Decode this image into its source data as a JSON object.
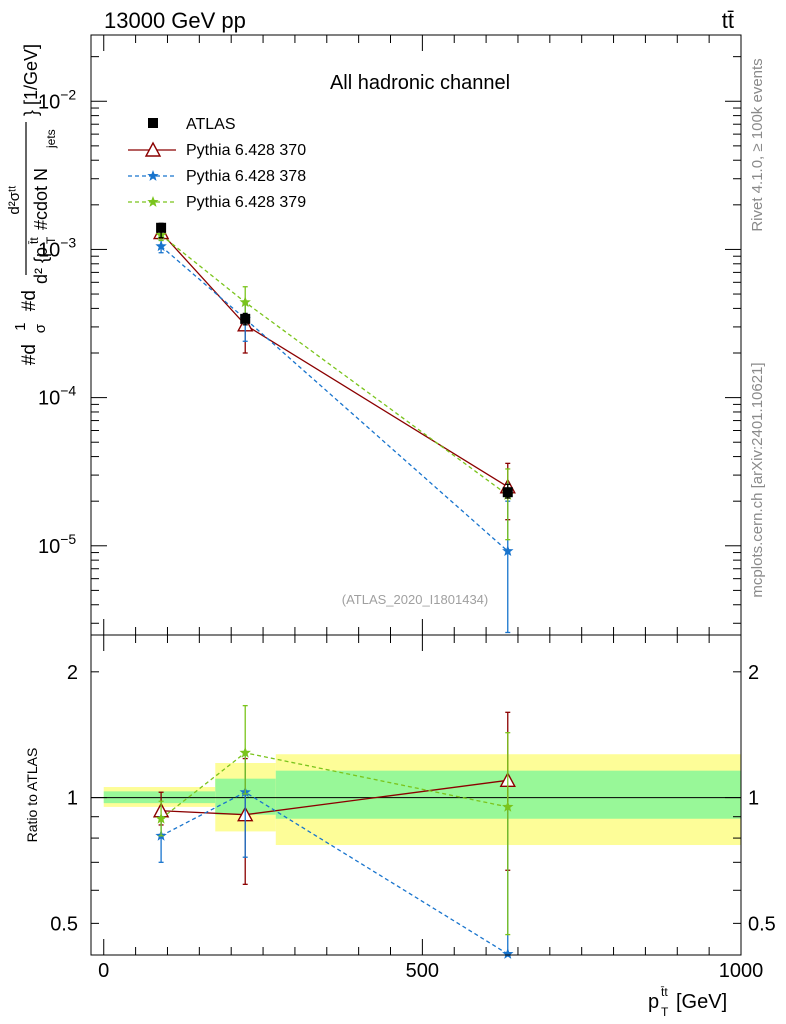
{
  "header": {
    "energy_label": "13000 GeV pp",
    "process_label": "tt̄"
  },
  "side_labels": {
    "rivet": "Rivet 4.1.0, ≥ 100k events",
    "mcplots": "mcplots.cern.ch [arXiv:2401.10621]"
  },
  "chart_data": [
    {
      "type": "line",
      "scale": "log",
      "title": "All hadronic channel",
      "analysis_id": "(ATLAS_2020_I1801434)",
      "ylabel": "#d̄σ #d d²σ/ d²{pₜᵗᵗ} #cdot N_jets } [1/GeV]",
      "ylabel_parts": {
        "a": "#d",
        "frac1_num": "1",
        "frac1_den": "σ",
        "b": "#d",
        "frac2_num": "d²σᵗᵗ",
        "frac2_den_1": "d² {p",
        "frac2_den_sup": "t̄t",
        "frac2_den_2": "T",
        "frac2_den_3": " #cdot N",
        "frac2_den_sub": "jets",
        "tail": "} [1/GeV]"
      },
      "xlim": [
        -20,
        1000
      ],
      "ylim": [
        2.5e-06,
        0.028
      ],
      "yticks": [
        {
          "value": 1e-05,
          "base": "10",
          "exp": "−5"
        },
        {
          "value": 0.0001,
          "base": "10",
          "exp": "−4"
        },
        {
          "value": 0.001,
          "base": "10",
          "exp": "−3"
        },
        {
          "value": 0.01,
          "base": "10",
          "exp": "−2"
        }
      ],
      "x": [
        90,
        222,
        634
      ],
      "series": [
        {
          "name": "ATLAS",
          "values": [
            0.0014,
            0.00034,
            2.3e-05
          ],
          "err_lo": [
            0.0012,
            0.00031,
            2.1e-05
          ],
          "err_hi": [
            0.0015,
            0.00037,
            2.6e-05
          ],
          "color": "#000000",
          "marker": "square",
          "dash": "none"
        },
        {
          "name": "Pythia 6.428 370",
          "values": [
            0.0013,
            0.00031,
            2.5e-05
          ],
          "err_lo": [
            0.0012,
            0.0002,
            1.5e-05
          ],
          "err_hi": [
            0.0014,
            0.00043,
            3.6e-05
          ],
          "color": "#8b0000",
          "marker": "triangle",
          "dash": "solid"
        },
        {
          "name": "Pythia 6.428 378",
          "values": [
            0.00105,
            0.00034,
            9.2e-06
          ],
          "err_lo": [
            0.00095,
            0.00024,
            2.6e-06
          ],
          "err_hi": [
            0.00115,
            0.00043,
            2e-05
          ],
          "color": "#1874cd",
          "marker": "star",
          "dash": "dashed"
        },
        {
          "name": "Pythia 6.428 379",
          "values": [
            0.00125,
            0.00044,
            2.2e-05
          ],
          "err_lo": [
            0.00115,
            0.00035,
            1.1e-05
          ],
          "err_hi": [
            0.00135,
            0.00056,
            3.3e-05
          ],
          "color": "#7ac41c",
          "marker": "star",
          "dash": "dashed"
        }
      ]
    },
    {
      "type": "line",
      "scale": "log",
      "ylabel": "Ratio to ATLAS",
      "xlabel_main": "p",
      "xlabel_sup": "t̄t",
      "xlabel_sub": "T",
      "xlabel_unit": " [GeV]",
      "xlim": [
        -20,
        1000
      ],
      "ylim": [
        0.42,
        2.45
      ],
      "xticks": [
        {
          "value": 0,
          "label": "0"
        },
        {
          "value": 500,
          "label": "500"
        },
        {
          "value": 1000,
          "label": "1000"
        }
      ],
      "yticks": [
        {
          "value": 0.5,
          "label": "0.5"
        },
        {
          "value": 1,
          "label": "1"
        },
        {
          "value": 2,
          "label": "2"
        }
      ],
      "bands": [
        {
          "x0": 0,
          "x1": 175,
          "yellow": [
            0.95,
            1.06
          ],
          "green": [
            0.97,
            1.035
          ]
        },
        {
          "x0": 175,
          "x1": 270,
          "yellow": [
            0.83,
            1.21
          ],
          "green": [
            0.91,
            1.11
          ]
        },
        {
          "x0": 270,
          "x1": 1000,
          "yellow": [
            0.77,
            1.27
          ],
          "green": [
            0.89,
            1.16
          ]
        }
      ],
      "x": [
        90,
        222,
        634
      ],
      "series": [
        {
          "name": "Pythia 6.428 370",
          "values": [
            0.93,
            0.91,
            1.1
          ],
          "err_lo": [
            0.86,
            0.62,
            0.67
          ],
          "err_hi": [
            1.03,
            1.24,
            1.6
          ],
          "color": "#8b0000",
          "marker": "triangle",
          "dash": "solid"
        },
        {
          "name": "Pythia 6.428 378",
          "values": [
            0.81,
            1.03,
            0.42
          ],
          "err_lo": [
            0.7,
            0.72,
            0.42
          ],
          "err_hi": [
            0.9,
            1.28,
            0.95
          ],
          "color": "#1874cd",
          "marker": "star",
          "dash": "dashed"
        },
        {
          "name": "Pythia 6.428 379",
          "values": [
            0.89,
            1.28,
            0.95
          ],
          "err_lo": [
            0.81,
            1.02,
            0.47
          ],
          "err_hi": [
            0.98,
            1.66,
            1.43
          ],
          "color": "#7ac41c",
          "marker": "star",
          "dash": "dashed"
        }
      ]
    }
  ]
}
